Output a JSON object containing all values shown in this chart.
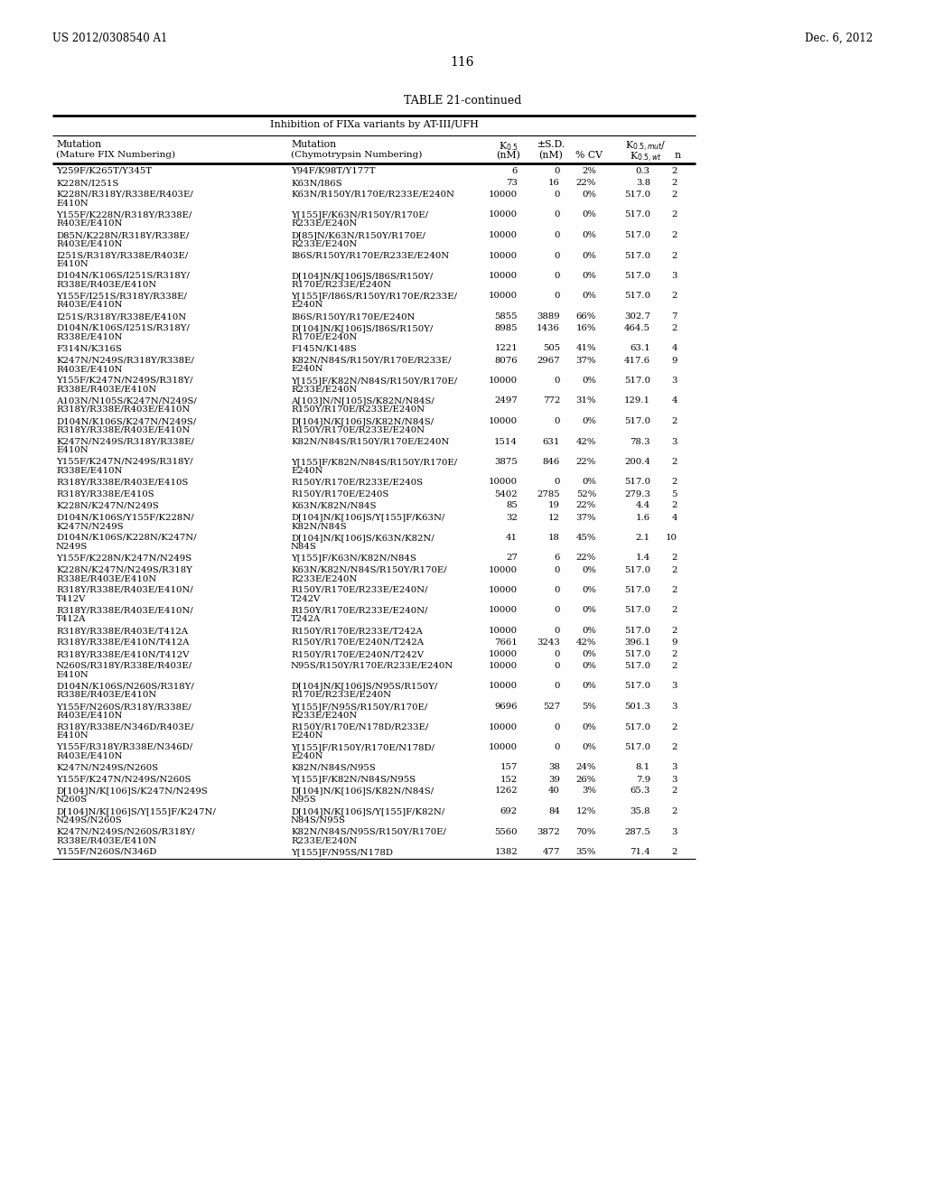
{
  "page_left": "US 2012/0308540 A1",
  "page_right": "Dec. 6, 2012",
  "page_number": "116",
  "table_title": "TABLE 21-continued",
  "table_subtitle": "Inhibition of FIXa variants by AT-III/UFH",
  "rows": [
    [
      "Y259F/K265T/Y345T",
      "Y94F/K98T/Y177T",
      "6",
      "0",
      "2%",
      "0.3",
      "2"
    ],
    [
      "K228N/I251S",
      "K63N/I86S",
      "73",
      "16",
      "22%",
      "3.8",
      "2"
    ],
    [
      "K228N/R318Y/R338E/R403E/\nE410N",
      "K63N/R150Y/R170E/R233E/E240N",
      "10000",
      "0",
      "0%",
      "517.0",
      "2"
    ],
    [
      "Y155F/K228N/R318Y/R338E/\nR403E/E410N",
      "Y[155]F/K63N/R150Y/R170E/\nR233E/E240N",
      "10000",
      "0",
      "0%",
      "517.0",
      "2"
    ],
    [
      "D85N/K228N/R318Y/R338E/\nR403E/E410N",
      "D[85]N/K63N/R150Y/R170E/\nR233E/E240N",
      "10000",
      "0",
      "0%",
      "517.0",
      "2"
    ],
    [
      "I251S/R318Y/R338E/R403E/\nE410N",
      "I86S/R150Y/R170E/R233E/E240N",
      "10000",
      "0",
      "0%",
      "517.0",
      "2"
    ],
    [
      "D104N/K106S/I251S/R318Y/\nR338E/R403E/E410N",
      "D[104]N/K[106]S/I86S/R150Y/\nR170E/R233E/E240N",
      "10000",
      "0",
      "0%",
      "517.0",
      "3"
    ],
    [
      "Y155F/I251S/R318Y/R338E/\nR403E/E410N",
      "Y[155]F/I86S/R150Y/R170E/R233E/\nE240N",
      "10000",
      "0",
      "0%",
      "517.0",
      "2"
    ],
    [
      "I251S/R318Y/R338E/E410N",
      "I86S/R150Y/R170E/E240N",
      "5855",
      "3889",
      "66%",
      "302.7",
      "7"
    ],
    [
      "D104N/K106S/I251S/R318Y/\nR338E/E410N",
      "D[104]N/K[106]S/I86S/R150Y/\nR170E/E240N",
      "8985",
      "1436",
      "16%",
      "464.5",
      "2"
    ],
    [
      "F314N/K316S",
      "F145N/K148S",
      "1221",
      "505",
      "41%",
      "63.1",
      "4"
    ],
    [
      "K247N/N249S/R318Y/R338E/\nR403E/E410N",
      "K82N/N84S/R150Y/R170E/R233E/\nE240N",
      "8076",
      "2967",
      "37%",
      "417.6",
      "9"
    ],
    [
      "Y155F/K247N/N249S/R318Y/\nR338E/R403E/E410N",
      "Y[155]F/K82N/N84S/R150Y/R170E/\nR233E/E240N",
      "10000",
      "0",
      "0%",
      "517.0",
      "3"
    ],
    [
      "A103N/N105S/K247N/N249S/\nR318Y/R338E/R403E/E410N",
      "A[103]N/N[105]S/K82N/N84S/\nR150Y/R170E/R233E/E240N",
      "2497",
      "772",
      "31%",
      "129.1",
      "4"
    ],
    [
      "D104N/K106S/K247N/N249S/\nR318Y/R338E/R403E/E410N",
      "D[104]N/K[106]S/K82N/N84S/\nR150Y/R170E/R233E/E240N",
      "10000",
      "0",
      "0%",
      "517.0",
      "2"
    ],
    [
      "K247N/N249S/R318Y/R338E/\nE410N",
      "K82N/N84S/R150Y/R170E/E240N",
      "1514",
      "631",
      "42%",
      "78.3",
      "3"
    ],
    [
      "Y155F/K247N/N249S/R318Y/\nR338E/E410N",
      "Y[155]F/K82N/N84S/R150Y/R170E/\nE240N",
      "3875",
      "846",
      "22%",
      "200.4",
      "2"
    ],
    [
      "R318Y/R338E/R403E/E410S",
      "R150Y/R170E/R233E/E240S",
      "10000",
      "0",
      "0%",
      "517.0",
      "2"
    ],
    [
      "R318Y/R338E/E410S",
      "R150Y/R170E/E240S",
      "5402",
      "2785",
      "52%",
      "279.3",
      "5"
    ],
    [
      "K228N/K247N/N249S",
      "K63N/K82N/N84S",
      "85",
      "19",
      "22%",
      "4.4",
      "2"
    ],
    [
      "D104N/K106S/Y155F/K228N/\nK247N/N249S",
      "D[104]N/K[106]S/Y[155]F/K63N/\nK82N/N84S",
      "32",
      "12",
      "37%",
      "1.6",
      "4"
    ],
    [
      "D104N/K106S/K228N/K247N/\nN249S",
      "D[104]N/K[106]S/K63N/K82N/\nN84S",
      "41",
      "18",
      "45%",
      "2.1",
      "10"
    ],
    [
      "Y155F/K228N/K247N/N249S",
      "Y[155]F/K63N/K82N/N84S",
      "27",
      "6",
      "22%",
      "1.4",
      "2"
    ],
    [
      "K228N/K247N/N249S/R318Y\nR338E/R403E/E410N",
      "K63N/K82N/N84S/R150Y/R170E/\nR233E/E240N",
      "10000",
      "0",
      "0%",
      "517.0",
      "2"
    ],
    [
      "R318Y/R338E/R403E/E410N/\nT412V",
      "R150Y/R170E/R233E/E240N/\nT242V",
      "10000",
      "0",
      "0%",
      "517.0",
      "2"
    ],
    [
      "R318Y/R338E/R403E/E410N/\nT412A",
      "R150Y/R170E/R233E/E240N/\nT242A",
      "10000",
      "0",
      "0%",
      "517.0",
      "2"
    ],
    [
      "R318Y/R338E/R403E/T412A",
      "R150Y/R170E/R233E/T242A",
      "10000",
      "0",
      "0%",
      "517.0",
      "2"
    ],
    [
      "R318Y/R338E/E410N/T412A",
      "R150Y/R170E/E240N/T242A",
      "7661",
      "3243",
      "42%",
      "396.1",
      "9"
    ],
    [
      "R318Y/R338E/E410N/T412V",
      "R150Y/R170E/E240N/T242V",
      "10000",
      "0",
      "0%",
      "517.0",
      "2"
    ],
    [
      "N260S/R318Y/R338E/R403E/\nE410N",
      "N95S/R150Y/R170E/R233E/E240N",
      "10000",
      "0",
      "0%",
      "517.0",
      "2"
    ],
    [
      "D104N/K106S/N260S/R318Y/\nR338E/R403E/E410N",
      "D[104]N/K[106]S/N95S/R150Y/\nR170E/R233E/E240N",
      "10000",
      "0",
      "0%",
      "517.0",
      "3"
    ],
    [
      "Y155F/N260S/R318Y/R338E/\nR403E/E410N",
      "Y[155]F/N95S/R150Y/R170E/\nR233E/E240N",
      "9696",
      "527",
      "5%",
      "501.3",
      "3"
    ],
    [
      "R318Y/R338E/N346D/R403E/\nE410N",
      "R150Y/R170E/N178D/R233E/\nE240N",
      "10000",
      "0",
      "0%",
      "517.0",
      "2"
    ],
    [
      "Y155F/R318Y/R338E/N346D/\nR403E/E410N",
      "Y[155]F/R150Y/R170E/N178D/\nE240N",
      "10000",
      "0",
      "0%",
      "517.0",
      "2"
    ],
    [
      "K247N/N249S/N260S",
      "K82N/N84S/N95S",
      "157",
      "38",
      "24%",
      "8.1",
      "3"
    ],
    [
      "Y155F/K247N/N249S/N260S",
      "Y[155]F/K82N/N84S/N95S",
      "152",
      "39",
      "26%",
      "7.9",
      "3"
    ],
    [
      "D[104]N/K[106]S/K247N/N249S\nN260S",
      "D[104]N/K[106]S/K82N/N84S/\nN95S",
      "1262",
      "40",
      "3%",
      "65.3",
      "2"
    ],
    [
      "D[104]N/K[106]S/Y[155]F/K247N/\nN249S/N260S",
      "D[104]N/K[106]S/Y[155]F/K82N/\nN84S/N95S",
      "692",
      "84",
      "12%",
      "35.8",
      "2"
    ],
    [
      "K247N/N249S/N260S/R318Y/\nR338E/R403E/E410N",
      "K82N/N84S/N95S/R150Y/R170E/\nR233E/E240N",
      "5560",
      "3872",
      "70%",
      "287.5",
      "3"
    ],
    [
      "Y155F/N260S/N346D",
      "Y[155]F/N95S/N178D",
      "1382",
      "477",
      "35%",
      "71.4",
      "2"
    ]
  ]
}
